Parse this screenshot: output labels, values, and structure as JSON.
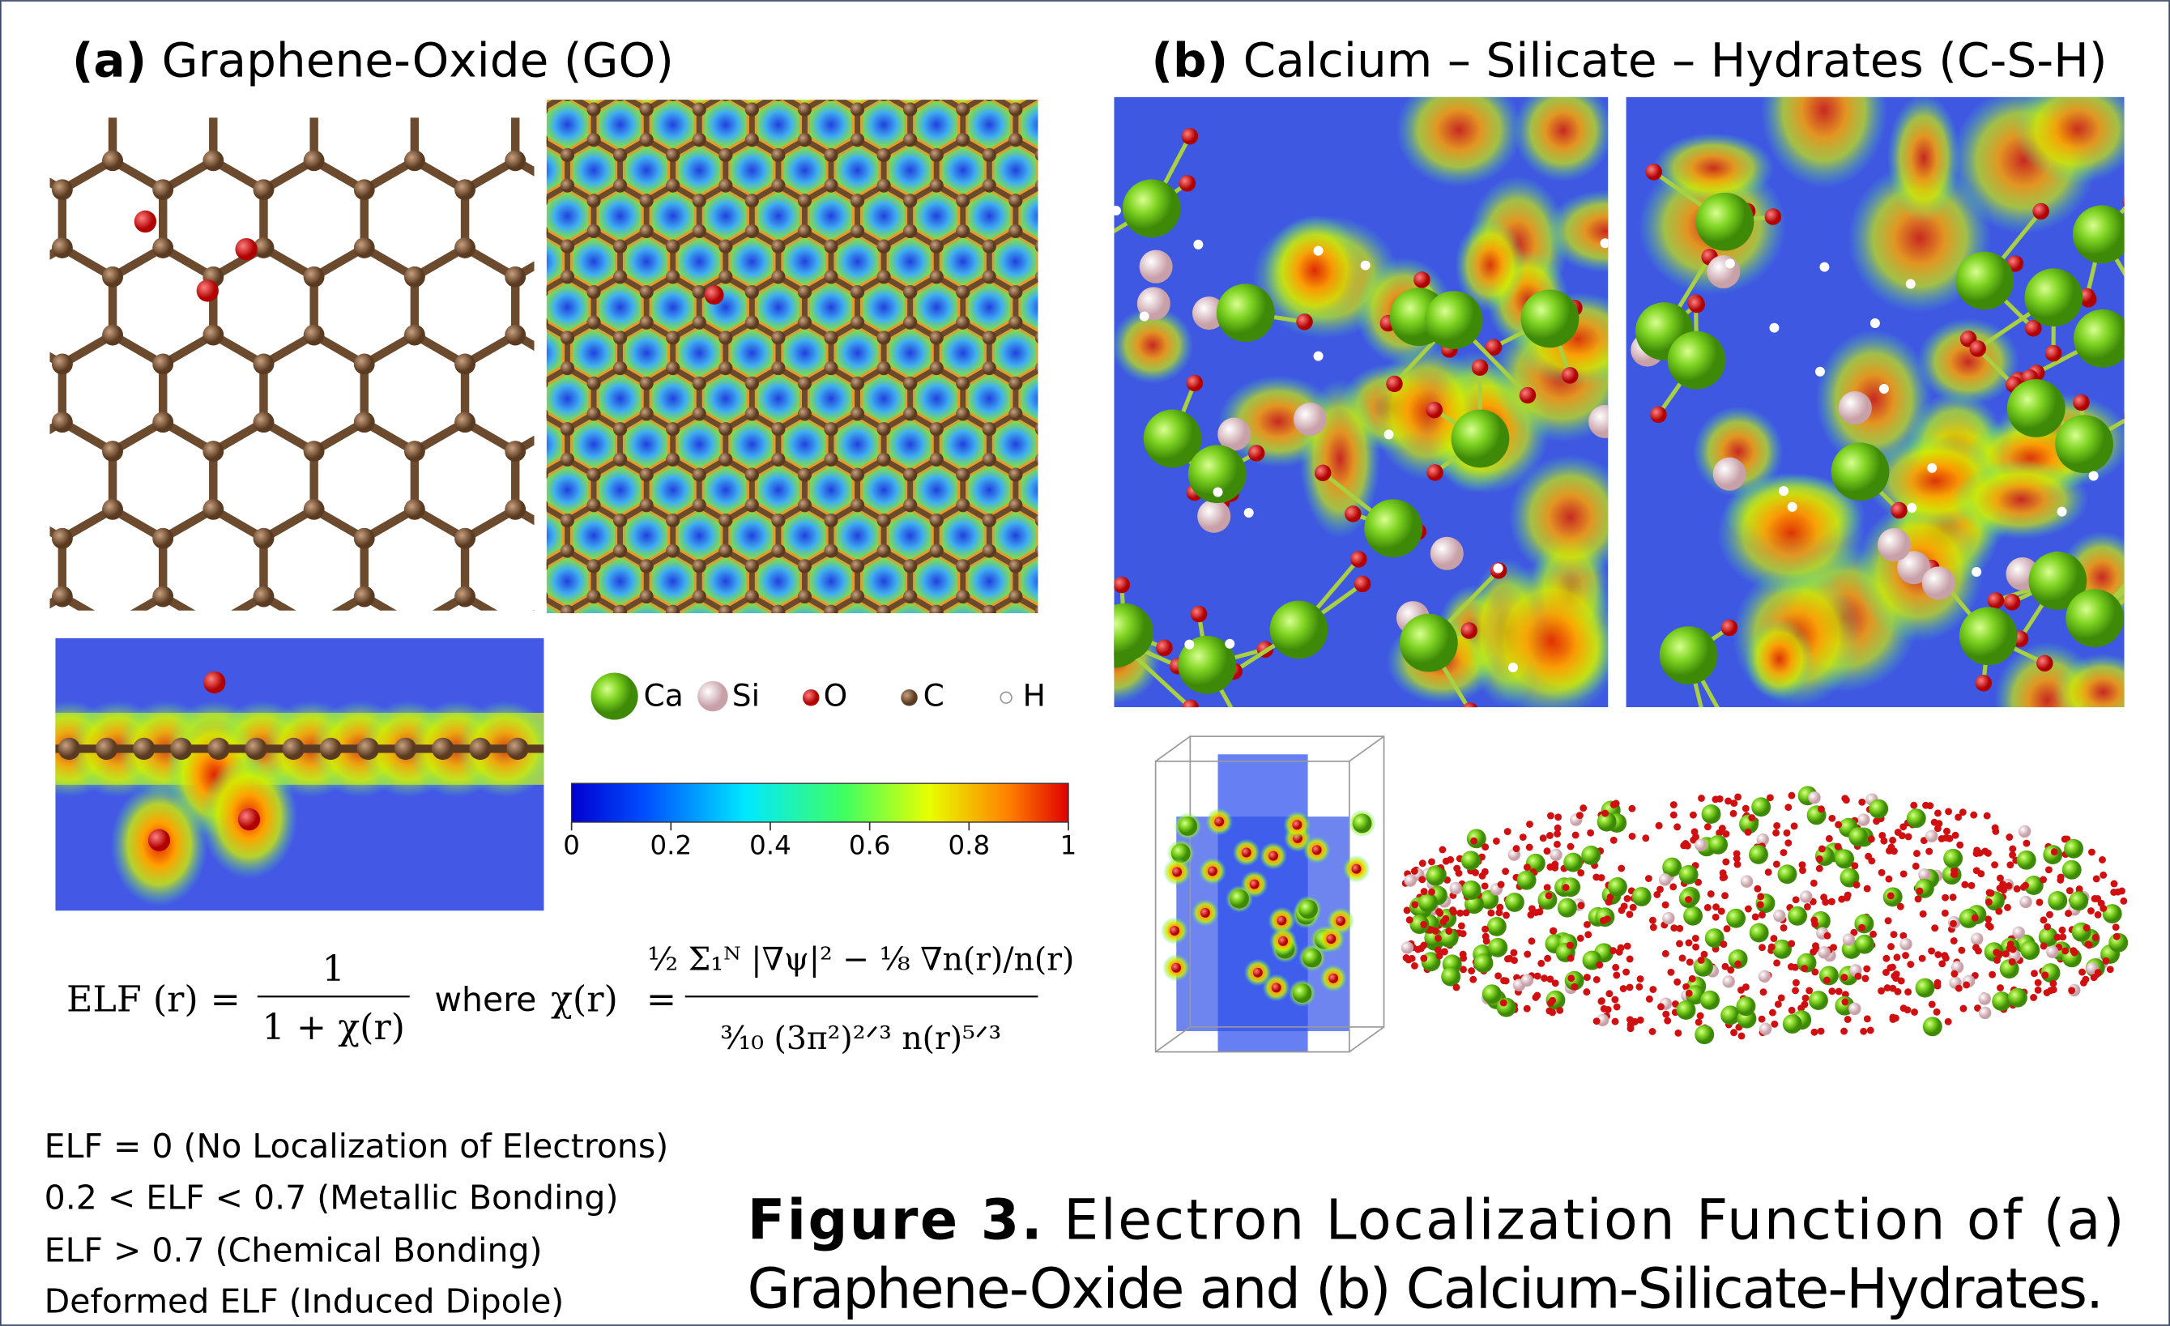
{
  "panel_a": {
    "label": "(a)",
    "title": "Graphene-Oxide (GO)"
  },
  "panel_b": {
    "label": "(b)",
    "title": "Calcium – Silicate – Hydrates (C-S-H)"
  },
  "legend": [
    "Ca",
    "Si",
    "O",
    "C",
    "H"
  ],
  "colorbar": {
    "ticks": [
      0,
      0.2,
      0.4,
      0.6,
      0.8,
      1
    ]
  },
  "formula": {
    "lhs": "ELF (r)",
    "eq": "=",
    "num1": "1",
    "den1": "1 + χ(r)",
    "where": "where",
    "chi": "χ(r)",
    "eq2": "=",
    "num2": "½ Σ₁ᴺ |∇ψ|² − ⅛ ∇n(r)/n(r)",
    "den2": "³⁄₁₀ (3π²)²ᐟ³ n(r)⁵ᐟ³"
  },
  "notes": [
    "ELF = 0   (No Localization of Electrons)",
    "0.2 < ELF < 0.7 (Metallic Bonding)",
    "ELF > 0.7 (Chemical Bonding)",
    "Deformed ELF (Induced Dipole)"
  ],
  "caption": {
    "label": "Figure 3.",
    "line1": "Electron Localization Function of  (a)",
    "line2": "Graphene-Oxide and (b) Calcium-Silicate-Hydrates."
  }
}
